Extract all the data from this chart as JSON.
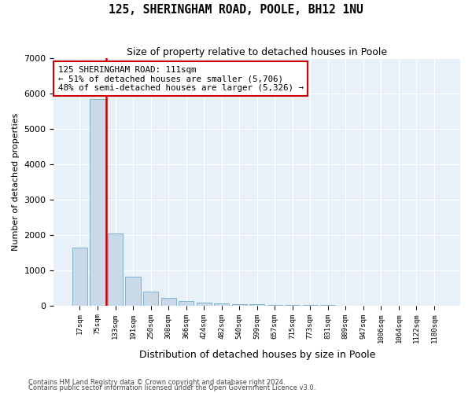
{
  "title": "125, SHERINGHAM ROAD, POOLE, BH12 1NU",
  "subtitle": "Size of property relative to detached houses in Poole",
  "xlabel": "Distribution of detached houses by size in Poole",
  "ylabel": "Number of detached properties",
  "bar_labels": [
    "17sqm",
    "75sqm",
    "133sqm",
    "191sqm",
    "250sqm",
    "308sqm",
    "366sqm",
    "424sqm",
    "482sqm",
    "540sqm",
    "599sqm",
    "657sqm",
    "715sqm",
    "773sqm",
    "831sqm",
    "889sqm",
    "947sqm",
    "1006sqm",
    "1064sqm",
    "1122sqm",
    "1180sqm"
  ],
  "bar_values": [
    1650,
    5850,
    2050,
    820,
    390,
    225,
    130,
    90,
    65,
    45,
    35,
    25,
    20,
    10,
    8,
    5,
    4,
    3,
    2,
    2,
    2
  ],
  "bar_color": "#c9d9e8",
  "bar_edge_color": "#7fb3d0",
  "vline_color": "#cc0000",
  "annotation_box_color": "#cc0000",
  "ylim": [
    0,
    7000
  ],
  "yticks": [
    0,
    1000,
    2000,
    3000,
    4000,
    5000,
    6000,
    7000
  ],
  "annotation_text": "125 SHERINGHAM ROAD: 111sqm\n← 51% of detached houses are smaller (5,706)\n48% of semi-detached houses are larger (5,326) →",
  "footer_line1": "Contains HM Land Registry data © Crown copyright and database right 2024.",
  "footer_line2": "Contains public sector information licensed under the Open Government Licence v3.0.",
  "bg_color": "#ffffff",
  "plot_bg_color": "#e8f0f8",
  "grid_color": "#ffffff"
}
